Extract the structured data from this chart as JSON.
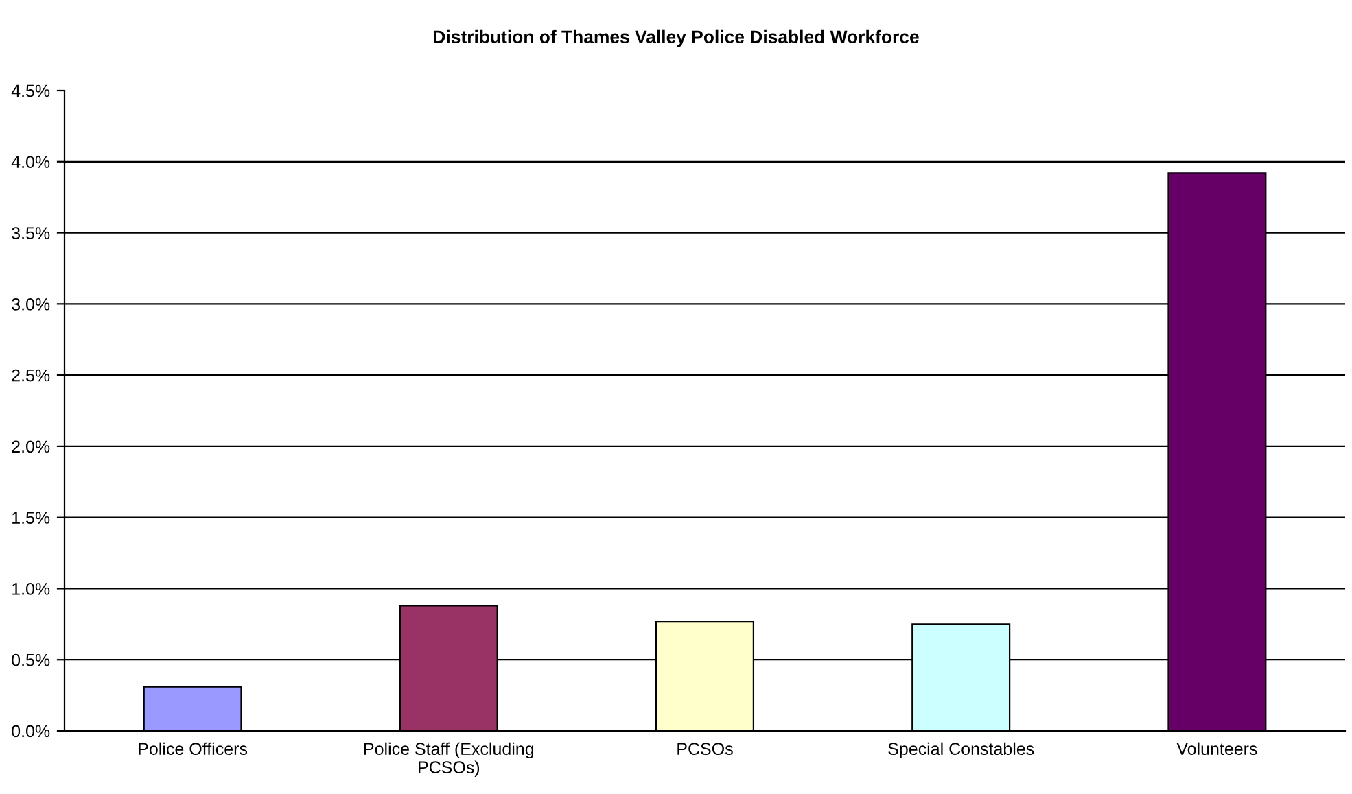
{
  "chart_data": {
    "type": "bar",
    "title": "Distribution of Thames Valley Police Disabled Workforce",
    "categories": [
      "Police Officers",
      "Police Staff (Excluding\nPCSOs)",
      "PCSOs",
      "Special Constables",
      "Volunteers"
    ],
    "values": [
      0.31,
      0.88,
      0.77,
      0.75,
      3.92
    ],
    "colors": [
      "#9999ff",
      "#993366",
      "#ffffcc",
      "#ccffff",
      "#660066"
    ],
    "ylim": [
      0,
      4.5
    ],
    "yticks": [
      {
        "value": 0,
        "label": "0.0%"
      },
      {
        "value": 0.5,
        "label": "0.5%"
      },
      {
        "value": 1,
        "label": "1.0%"
      },
      {
        "value": 1.5,
        "label": "1.5%"
      },
      {
        "value": 2,
        "label": "2.0%"
      },
      {
        "value": 2.5,
        "label": "2.5%"
      },
      {
        "value": 3,
        "label": "3.0%"
      },
      {
        "value": 3.5,
        "label": "3.5%"
      },
      {
        "value": 4,
        "label": "4.0%"
      },
      {
        "value": 4.5,
        "label": "4.5%"
      }
    ],
    "grid": "y"
  }
}
